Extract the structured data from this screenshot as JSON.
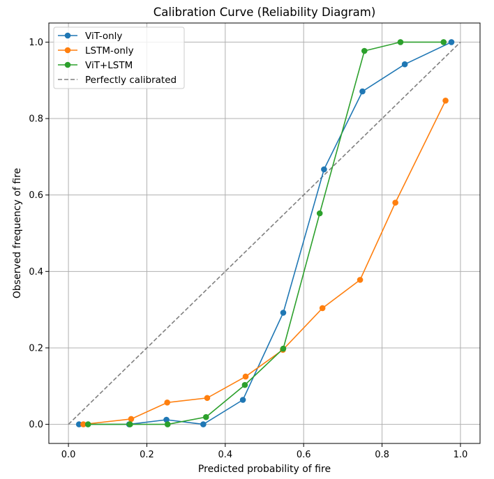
{
  "chart_data": {
    "type": "line",
    "title": "Calibration Curve (Reliability Diagram)",
    "xlabel": "Predicted probability of fire",
    "ylabel": "Observed frequency of fire",
    "xlim": [
      -0.05,
      1.05
    ],
    "ylim": [
      -0.05,
      1.05
    ],
    "xticks": [
      0.0,
      0.2,
      0.4,
      0.6,
      0.8,
      1.0
    ],
    "yticks": [
      0.0,
      0.2,
      0.4,
      0.6,
      0.8,
      1.0
    ],
    "xtick_labels": [
      "0.0",
      "0.2",
      "0.4",
      "0.6",
      "0.8",
      "1.0"
    ],
    "ytick_labels": [
      "0.0",
      "0.2",
      "0.4",
      "0.6",
      "0.8",
      "1.0"
    ],
    "grid": true,
    "legend_position": "top-left",
    "series": [
      {
        "name": "ViT-only",
        "color": "#1f77b4",
        "marker": "circle",
        "linestyle": "solid",
        "x": [
          0.027,
          0.155,
          0.25,
          0.344,
          0.445,
          0.548,
          0.652,
          0.75,
          0.858,
          0.977
        ],
        "y": [
          0.0,
          0.0,
          0.012,
          0.0,
          0.064,
          0.292,
          0.667,
          0.871,
          0.942,
          1.0
        ]
      },
      {
        "name": "LSTM-only",
        "color": "#ff7f0e",
        "marker": "circle",
        "linestyle": "solid",
        "x": [
          0.038,
          0.16,
          0.252,
          0.354,
          0.452,
          0.547,
          0.648,
          0.744,
          0.834,
          0.962
        ],
        "y": [
          0.0,
          0.014,
          0.057,
          0.069,
          0.125,
          0.195,
          0.304,
          0.378,
          0.58,
          0.847
        ]
      },
      {
        "name": "ViT+LSTM",
        "color": "#2ca02c",
        "marker": "circle",
        "linestyle": "solid",
        "x": [
          0.05,
          0.157,
          0.253,
          0.351,
          0.45,
          0.548,
          0.641,
          0.755,
          0.847,
          0.957
        ],
        "y": [
          0.0,
          0.0,
          0.0,
          0.019,
          0.103,
          0.198,
          0.552,
          0.977,
          1.0,
          1.0
        ]
      },
      {
        "name": "Perfectly calibrated",
        "color": "#7f7f7f",
        "marker": "none",
        "linestyle": "dashed",
        "x": [
          0.0,
          1.0
        ],
        "y": [
          0.0,
          1.0
        ]
      }
    ]
  }
}
